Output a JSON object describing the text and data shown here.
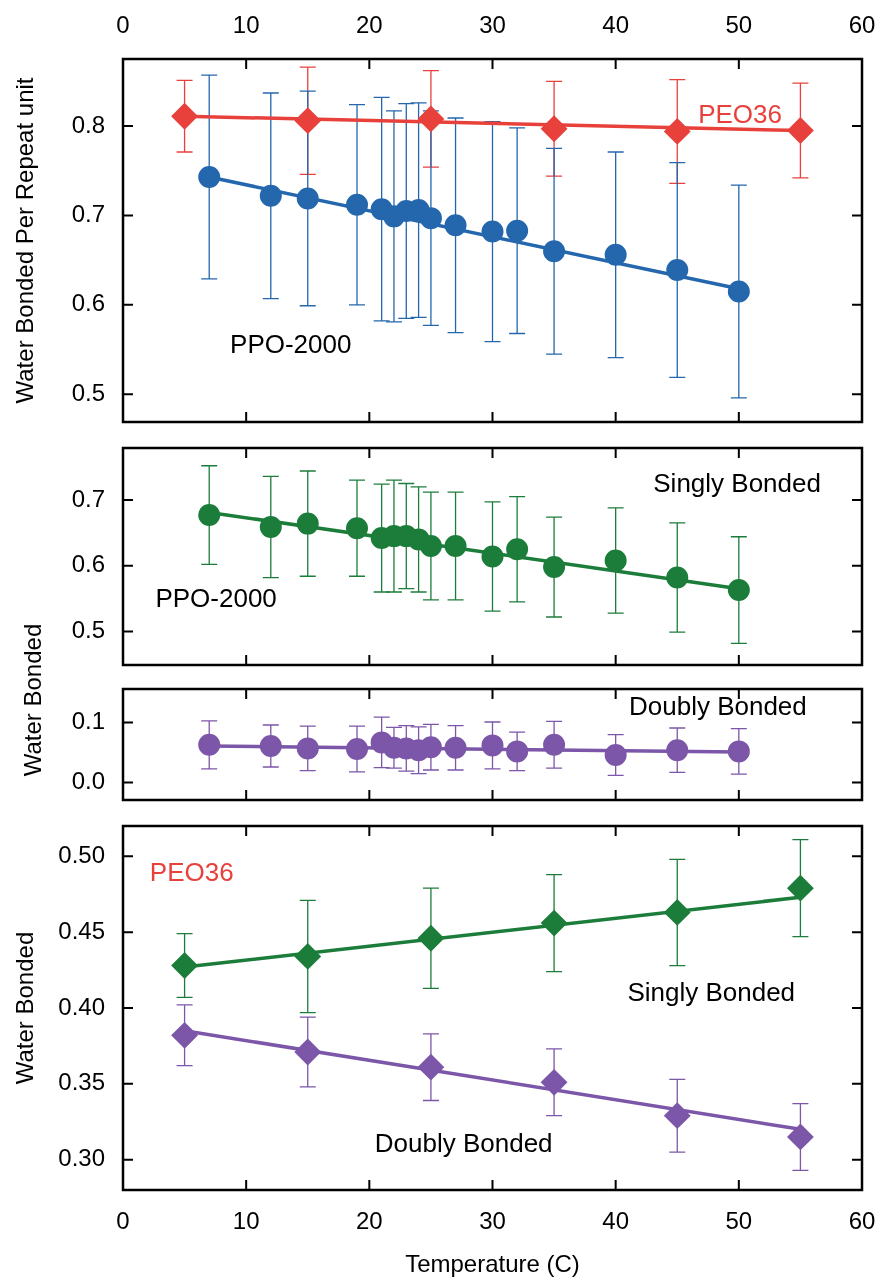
{
  "chart_data": [
    {
      "type": "scatter",
      "ylabel": "Water Bonded Per Repeat unit",
      "annotations": [
        "PEO36",
        "PPO-2000"
      ],
      "xlim": [
        0,
        60
      ],
      "xticks": [
        0,
        10,
        20,
        30,
        40,
        50,
        60
      ],
      "x2lim": [
        0,
        60
      ],
      "x2ticks": [
        0,
        10,
        20,
        30,
        40,
        50,
        60
      ],
      "ylim": [
        0.469,
        0.875
      ],
      "yticks": [
        0.5,
        0.6,
        0.7,
        0.8
      ],
      "tick_labels": "y",
      "series": [
        {
          "type": "scatter",
          "color": "#e8413c",
          "marker": "diamond",
          "x": [
            5,
            15,
            25,
            35,
            45,
            55
          ],
          "values": [
            0.811,
            0.806,
            0.808,
            0.797,
            0.794,
            0.795
          ],
          "errors": [
            0.04,
            0.06,
            0.054,
            0.053,
            0.058,
            0.053
          ]
        },
        {
          "type": "line",
          "color": "#e8413c",
          "marker": "none",
          "x": [
            5,
            55
          ],
          "values": [
            0.811,
            0.795
          ]
        },
        {
          "type": "scatter",
          "color": "#2467ad",
          "marker": "circle",
          "x": [
            7,
            12,
            15,
            19,
            21,
            22,
            23,
            24,
            25,
            27,
            30,
            32,
            35,
            40,
            45,
            50
          ],
          "values": [
            0.743,
            0.722,
            0.719,
            0.712,
            0.707,
            0.699,
            0.705,
            0.706,
            0.697,
            0.689,
            0.682,
            0.683,
            0.66,
            0.656,
            0.639,
            0.615
          ],
          "errors": [
            0.114,
            0.115,
            0.12,
            0.112,
            0.125,
            0.118,
            0.12,
            0.12,
            0.12,
            0.12,
            0.123,
            0.115,
            0.115,
            0.115,
            0.12,
            0.119
          ]
        },
        {
          "type": "line",
          "color": "#2467ad",
          "marker": "none",
          "x": [
            7,
            50
          ],
          "values": [
            0.743,
            0.618
          ]
        }
      ]
    },
    {
      "type": "scatter",
      "ylabel": "Water Bonded",
      "annotations": [
        "Singly Bonded",
        "PPO-2000"
      ],
      "xlim": [
        0,
        60
      ],
      "xticks": [
        0,
        10,
        20,
        30,
        40,
        50,
        60
      ],
      "ylim": [
        0.449,
        0.779
      ],
      "yticks": [
        0.5,
        0.6,
        0.7
      ],
      "tick_labels": "y",
      "series": [
        {
          "type": "scatter",
          "color": "#1c7d3b",
          "marker": "circle",
          "x": [
            7,
            12,
            15,
            19,
            21,
            22,
            23,
            24,
            25,
            27,
            30,
            32,
            35,
            40,
            45,
            50
          ],
          "values": [
            0.677,
            0.659,
            0.664,
            0.657,
            0.642,
            0.645,
            0.645,
            0.64,
            0.63,
            0.63,
            0.614,
            0.625,
            0.598,
            0.608,
            0.582,
            0.563
          ],
          "errors": [
            0.075,
            0.077,
            0.08,
            0.073,
            0.082,
            0.085,
            0.08,
            0.08,
            0.082,
            0.082,
            0.083,
            0.08,
            0.076,
            0.08,
            0.083,
            0.081
          ]
        },
        {
          "type": "line",
          "color": "#1c7d3b",
          "marker": "none",
          "x": [
            7,
            50
          ],
          "values": [
            0.681,
            0.565
          ]
        }
      ]
    },
    {
      "type": "scatter",
      "annotations": [
        "Doubly Bonded"
      ],
      "xlim": [
        0,
        60
      ],
      "xticks": [
        0,
        10,
        20,
        30,
        40,
        50,
        60
      ],
      "ylim": [
        -0.029,
        0.156
      ],
      "yticks": [
        {
          "value": 0,
          "label": "0.0"
        },
        0.1
      ],
      "tick_labels": "y",
      "series": [
        {
          "type": "scatter",
          "color": "#7c56a8",
          "marker": "circle",
          "x": [
            7,
            12,
            15,
            19,
            21,
            22,
            23,
            24,
            25,
            27,
            30,
            32,
            35,
            40,
            45,
            50
          ],
          "values": [
            0.063,
            0.061,
            0.057,
            0.056,
            0.067,
            0.058,
            0.057,
            0.054,
            0.059,
            0.058,
            0.062,
            0.052,
            0.063,
            0.046,
            0.054,
            0.052
          ],
          "errors": [
            0.04,
            0.035,
            0.037,
            0.038,
            0.042,
            0.034,
            0.038,
            0.039,
            0.038,
            0.037,
            0.039,
            0.032,
            0.039,
            0.034,
            0.037,
            0.038
          ]
        },
        {
          "type": "line",
          "color": "#7c56a8",
          "marker": "none",
          "x": [
            7,
            50
          ],
          "values": [
            0.061,
            0.051
          ]
        }
      ]
    },
    {
      "type": "scatter",
      "xlabel": "Temperature (C)",
      "ylabel": "Water Bonded",
      "annotations": [
        "PEO36",
        "Singly Bonded",
        "Doubly Bonded"
      ],
      "xlim": [
        0,
        60
      ],
      "xticks": [
        0,
        10,
        20,
        30,
        40,
        50,
        60
      ],
      "ylim": [
        0.28,
        0.52
      ],
      "yticks": [
        {
          "value": 0.3,
          "label": "0.30"
        },
        0.35,
        {
          "value": 0.4,
          "label": "0.40"
        },
        0.45,
        {
          "value": 0.5,
          "label": "0.50"
        }
      ],
      "series": [
        {
          "type": "scatter",
          "color": "#1c7d3b",
          "marker": "diamond",
          "x": [
            5,
            15,
            25,
            35,
            45,
            55
          ],
          "values": [
            0.428,
            0.434,
            0.446,
            0.456,
            0.463,
            0.479
          ],
          "errors": [
            0.021,
            0.037,
            0.033,
            0.032,
            0.035,
            0.032
          ]
        },
        {
          "type": "line",
          "color": "#1c7d3b",
          "marker": "none",
          "x": [
            5,
            55
          ],
          "values": [
            0.427,
            0.473
          ]
        },
        {
          "type": "scatter",
          "color": "#7c56a8",
          "marker": "diamond",
          "x": [
            5,
            15,
            25,
            35,
            45,
            55
          ],
          "values": [
            0.382,
            0.371,
            0.361,
            0.351,
            0.329,
            0.315
          ],
          "errors": [
            0.02,
            0.023,
            0.022,
            0.022,
            0.024,
            0.022
          ]
        },
        {
          "type": "line",
          "color": "#7c56a8",
          "marker": "none",
          "x": [
            5,
            55
          ],
          "values": [
            0.385,
            0.32
          ]
        }
      ]
    }
  ]
}
